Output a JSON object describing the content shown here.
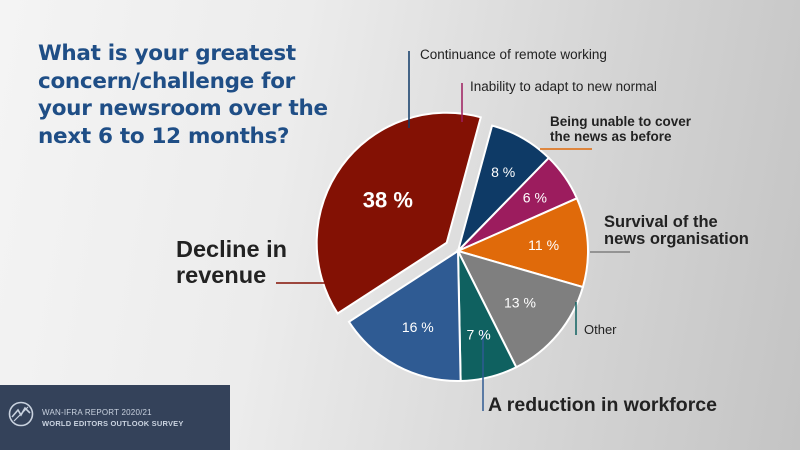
{
  "chart_data": {
    "type": "pie",
    "title": "What is your greatest concern/challenge for your newsroom over the next 6 to 12 months?",
    "slices": [
      {
        "label": "Continuance of remote working",
        "value": 8,
        "value_label": "8 %",
        "color": "#0e3a66"
      },
      {
        "label": "Inability to adapt to new normal",
        "value": 6,
        "value_label": "6 %",
        "color": "#9c1c5e"
      },
      {
        "label": "Being unable to cover the news as before",
        "value": 11,
        "value_label": "11 %",
        "color": "#e06a0a"
      },
      {
        "label": "Survival of the news organisation",
        "value": 13,
        "value_label": "13 %",
        "color": "#7f7f7f"
      },
      {
        "label": "Other",
        "value": 7,
        "value_label": "7 %",
        "color": "#0f6160"
      },
      {
        "label": "A reduction in workforce",
        "value": 16,
        "value_label": "16 %",
        "color": "#2f5b93"
      },
      {
        "label": "Decline in revenue",
        "value": 38,
        "value_label": "38 %",
        "color": "#831104",
        "exploded": true
      }
    ]
  },
  "footer": {
    "line1": "WAN-IFRA REPORT 2020/21",
    "line2": "WORLD EDITORS OUTLOOK SURVEY"
  },
  "icons": {
    "footer_logo": "wan-ifra-logo-icon"
  }
}
